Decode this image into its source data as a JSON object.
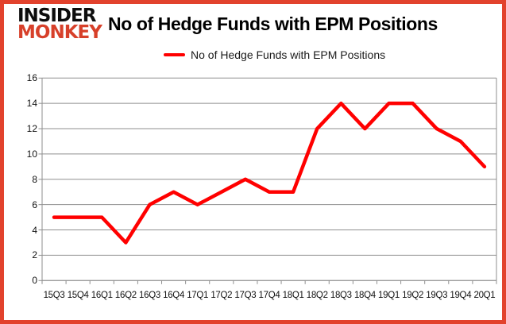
{
  "logo": {
    "line1": "INSIDER",
    "line2": "MONKEY"
  },
  "header": {
    "title": "No of Hedge Funds with EPM Positions"
  },
  "legend": {
    "label": "No of Hedge Funds with EPM Positions"
  },
  "colors": {
    "accent_line": "#ff0000",
    "frame_border": "#e2422d",
    "logo_red": "#d7402a",
    "grid": "#8f8f8f",
    "label_text": "#111111"
  },
  "chart_data": {
    "type": "line",
    "title": "No of Hedge Funds with EPM Positions",
    "categories": [
      "15Q3",
      "15Q4",
      "16Q1",
      "16Q2",
      "16Q3",
      "16Q4",
      "17Q1",
      "17Q2",
      "17Q3",
      "17Q4",
      "18Q1",
      "18Q2",
      "18Q3",
      "18Q4",
      "19Q1",
      "19Q2",
      "19Q3",
      "19Q4",
      "20Q1"
    ],
    "values": [
      5,
      5,
      5,
      3,
      6,
      7,
      6,
      7,
      8,
      7,
      7,
      12,
      14,
      12,
      14,
      14,
      12,
      11,
      9
    ],
    "series_name": "No of Hedge Funds with EPM Positions",
    "xlabel": "",
    "ylabel": "",
    "ylim": [
      0,
      16
    ],
    "yticks": [
      0,
      2,
      4,
      6,
      8,
      10,
      12,
      14,
      16
    ],
    "grid": "horizontal",
    "legend_position": "top-center",
    "line_color": "#ff0000"
  }
}
